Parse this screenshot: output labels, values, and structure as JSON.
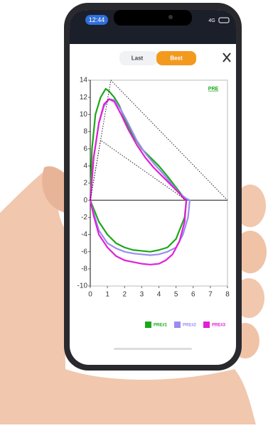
{
  "status_bar": {
    "time": "12:44",
    "network": "4G"
  },
  "tabs": [
    "Last",
    "Best"
  ],
  "chart_data": {
    "type": "line",
    "annotation": "PRE",
    "xlim": [
      0,
      8
    ],
    "xticks": [
      0,
      1,
      2,
      3,
      4,
      5,
      6,
      7,
      8
    ],
    "ylim": [
      -10,
      14
    ],
    "yticks": [
      -10,
      -8,
      -6,
      -4,
      -2,
      0,
      2,
      4,
      6,
      8,
      10,
      12,
      14
    ],
    "series": [
      {
        "name": "PRE#1",
        "color": "#1aa81a",
        "x": [
          0,
          0.1,
          0.3,
          0.6,
          0.9,
          1.1,
          1.4,
          1.7,
          2.0,
          2.5,
          3.0,
          3.5,
          4.0,
          4.5,
          5.0,
          5.5,
          5.6,
          5.5,
          5.0,
          4.5,
          4.0,
          3.5,
          3.0,
          2.5,
          2.0,
          1.5,
          1.0,
          0.5,
          0.2,
          0
        ],
        "values": [
          0,
          6,
          10,
          12,
          13,
          12.7,
          12,
          11,
          9.5,
          7.5,
          6,
          5,
          4,
          2.8,
          1.5,
          0.2,
          0,
          -2,
          -4.5,
          -5.5,
          -5.8,
          -6,
          -5.9,
          -5.8,
          -5.5,
          -5,
          -4,
          -2.5,
          -1,
          0
        ]
      },
      {
        "name": "PRE#2",
        "color": "#9b8cf0",
        "x": [
          0,
          0.2,
          0.5,
          0.8,
          1.1,
          1.4,
          1.8,
          2.2,
          2.7,
          3.2,
          3.7,
          4.2,
          4.7,
          5.2,
          5.6,
          5.8,
          5.7,
          5.4,
          5.0,
          4.5,
          4.0,
          3.5,
          3.0,
          2.5,
          2.0,
          1.5,
          1.0,
          0.5,
          0.2,
          0
        ],
        "values": [
          0,
          5,
          9,
          11,
          11.8,
          11.7,
          10.5,
          9,
          7,
          5.5,
          4.3,
          3.2,
          2,
          0.8,
          0.2,
          0,
          -2,
          -4,
          -5.5,
          -6,
          -6.3,
          -6.4,
          -6.3,
          -6.2,
          -6,
          -5.6,
          -5,
          -3.5,
          -1.5,
          0
        ]
      },
      {
        "name": "PRE#3",
        "color": "#e020d8",
        "x": [
          0,
          0.2,
          0.5,
          0.8,
          1.1,
          1.4,
          1.8,
          2.2,
          2.7,
          3.2,
          3.7,
          4.2,
          4.7,
          5.2,
          5.5,
          5.6,
          5.5,
          5.2,
          4.8,
          4.4,
          4.0,
          3.5,
          3.0,
          2.5,
          2.0,
          1.5,
          1.0,
          0.5,
          0.2,
          0
        ],
        "values": [
          0,
          5,
          9,
          11.2,
          11.8,
          11.5,
          10,
          8.3,
          6.5,
          5,
          3.8,
          2.8,
          1.8,
          0.8,
          0.1,
          0,
          -2.5,
          -4.8,
          -6.3,
          -7,
          -7.4,
          -7.5,
          -7.4,
          -7.2,
          -7,
          -6.5,
          -5.5,
          -4,
          -1.8,
          0
        ]
      },
      {
        "color": "#222222",
        "dashed": true,
        "x": [
          0,
          1.2,
          8
        ],
        "values": [
          0,
          14,
          0
        ]
      },
      {
        "color": "#222222",
        "dashed": true,
        "x": [
          0,
          0.6,
          5.6
        ],
        "values": [
          0,
          7,
          0
        ]
      }
    ]
  }
}
